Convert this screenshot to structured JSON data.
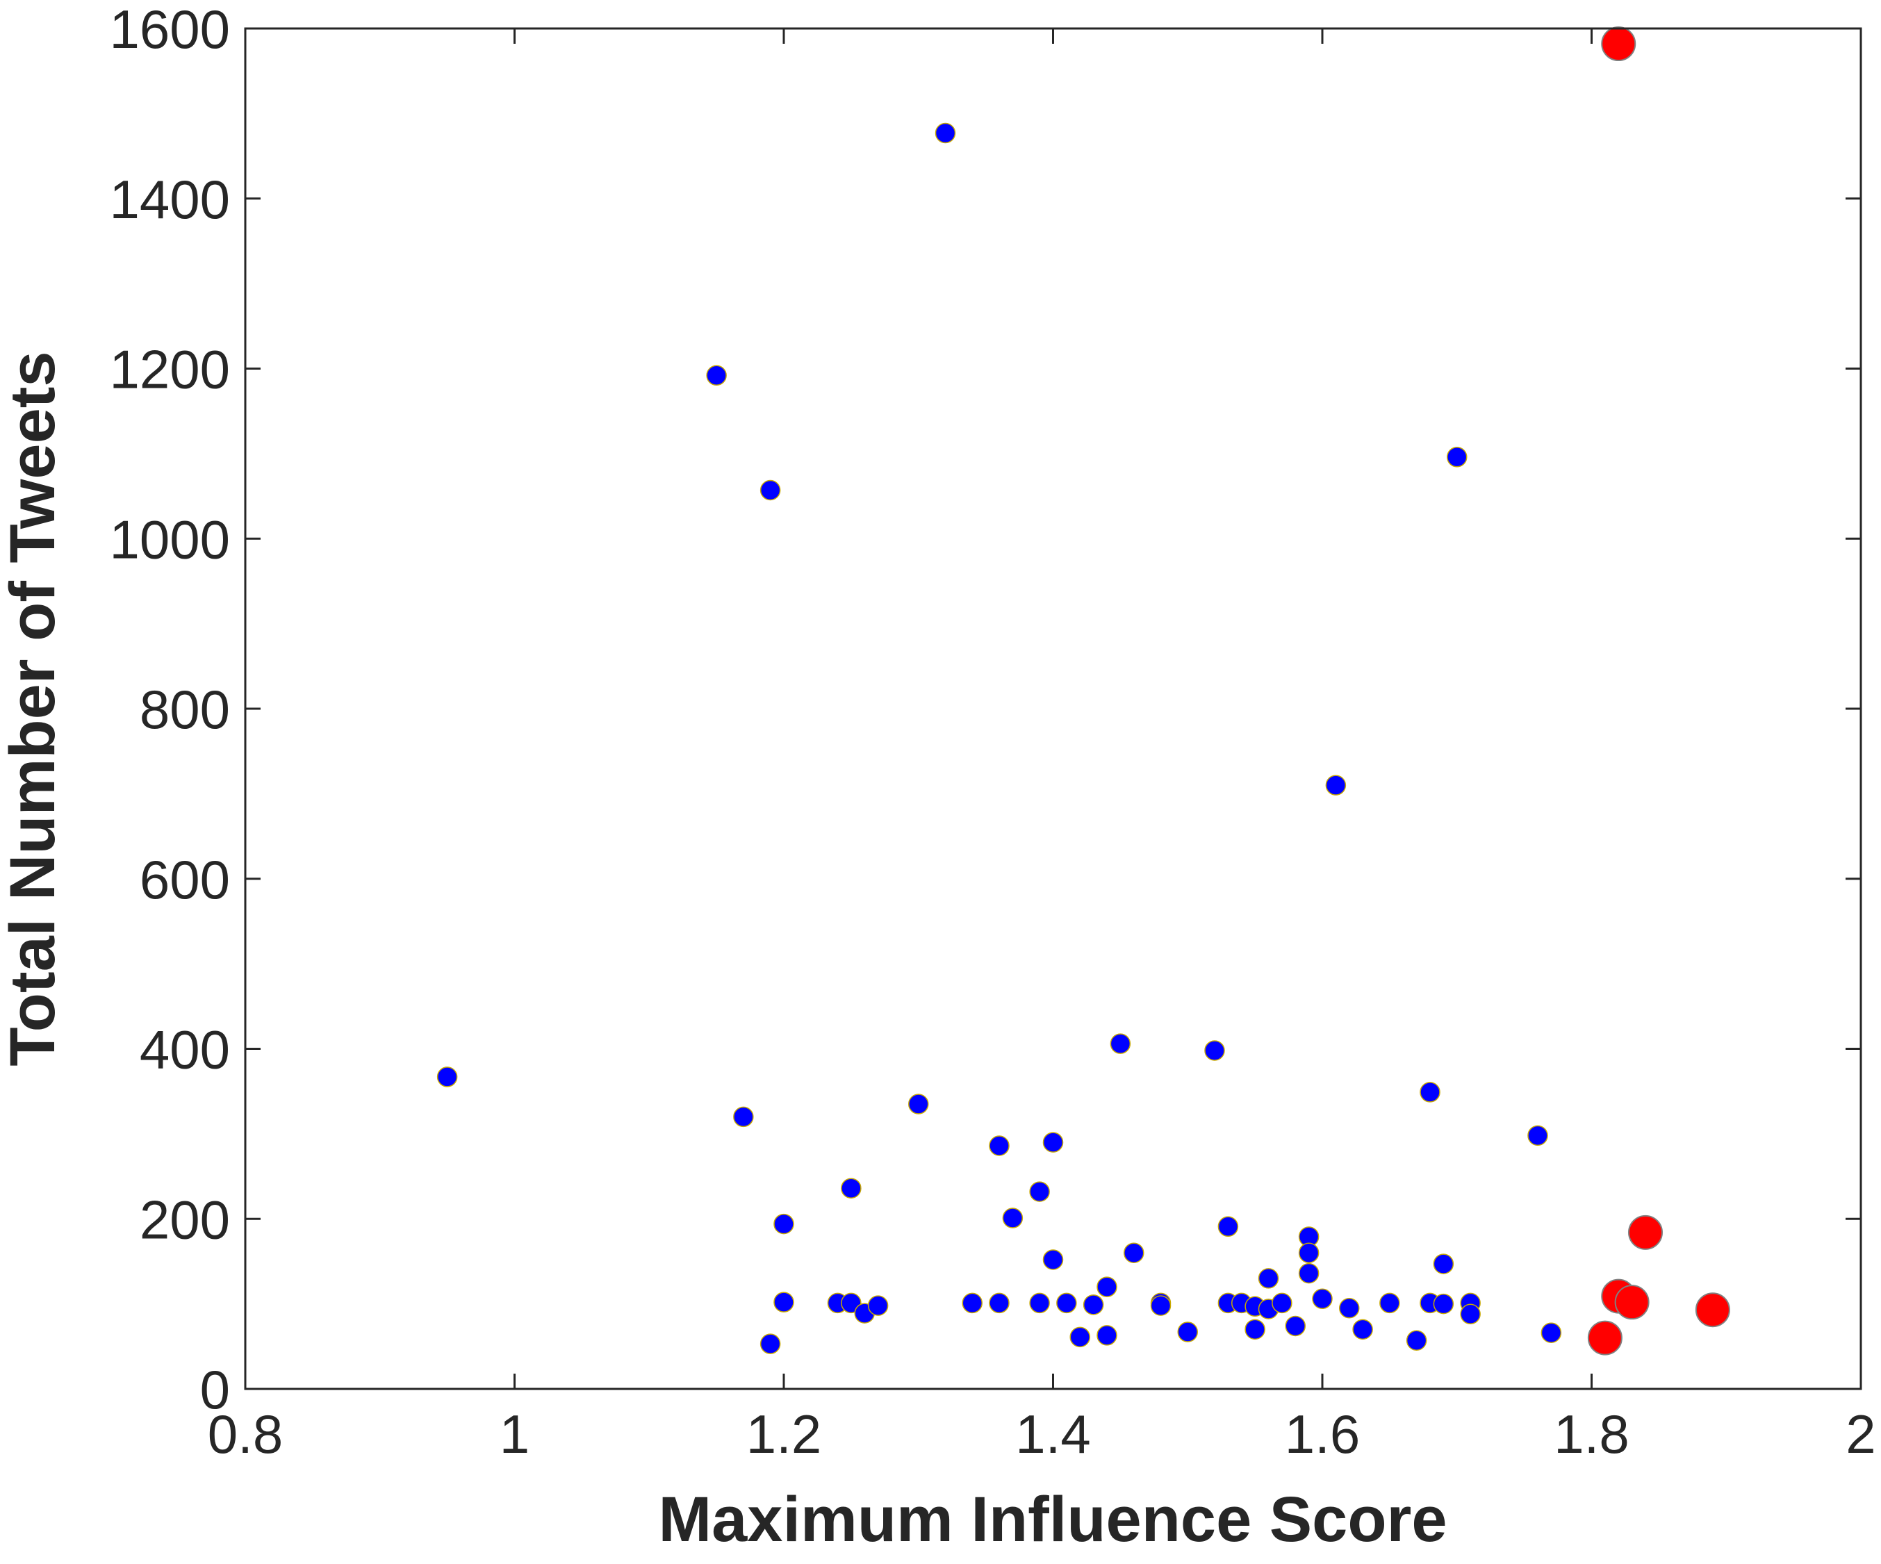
{
  "chart_data": {
    "type": "scatter",
    "xlabel": "Maximum Influence Score",
    "ylabel": "Total Number of Tweets",
    "xlim": [
      0.8,
      2
    ],
    "ylim": [
      0,
      1600
    ],
    "xticks": [
      0.8,
      1,
      1.2,
      1.4,
      1.6,
      1.8,
      2
    ],
    "xtick_labels": [
      "0.8",
      "1",
      "1.2",
      "1.4",
      "1.6",
      "1.8",
      "2"
    ],
    "yticks": [
      0,
      200,
      400,
      600,
      800,
      1000,
      1200,
      1400,
      1600
    ],
    "ytick_labels": [
      "0",
      "200",
      "400",
      "600",
      "800",
      "1000",
      "1200",
      "1400",
      "1600"
    ],
    "grid": false,
    "colors": {
      "series_1": "#0000ff",
      "series_1_edge": "#c8a800",
      "series_2": "#ff0000",
      "series_2_edge": "#808080",
      "axis": "#262626"
    },
    "series": [
      {
        "color": "#0000ff",
        "points": [
          [
            0.95,
            367
          ],
          [
            1.15,
            1192
          ],
          [
            1.17,
            320
          ],
          [
            1.19,
            1057
          ],
          [
            1.19,
            53
          ],
          [
            1.2,
            102
          ],
          [
            1.2,
            194
          ],
          [
            1.24,
            101
          ],
          [
            1.25,
            236
          ],
          [
            1.25,
            101
          ],
          [
            1.26,
            89
          ],
          [
            1.27,
            98
          ],
          [
            1.3,
            335
          ],
          [
            1.32,
            1477
          ],
          [
            1.34,
            101
          ],
          [
            1.36,
            286
          ],
          [
            1.36,
            101
          ],
          [
            1.37,
            201
          ],
          [
            1.39,
            232
          ],
          [
            1.39,
            101
          ],
          [
            1.4,
            290
          ],
          [
            1.4,
            152
          ],
          [
            1.41,
            101
          ],
          [
            1.42,
            61
          ],
          [
            1.43,
            99
          ],
          [
            1.44,
            120
          ],
          [
            1.44,
            63
          ],
          [
            1.45,
            406
          ],
          [
            1.46,
            160
          ],
          [
            1.48,
            101
          ],
          [
            1.48,
            98
          ],
          [
            1.5,
            67
          ],
          [
            1.52,
            398
          ],
          [
            1.53,
            101
          ],
          [
            1.53,
            191
          ],
          [
            1.54,
            101
          ],
          [
            1.55,
            70
          ],
          [
            1.55,
            97
          ],
          [
            1.56,
            130
          ],
          [
            1.56,
            94
          ],
          [
            1.57,
            101
          ],
          [
            1.58,
            74
          ],
          [
            1.59,
            179
          ],
          [
            1.59,
            160
          ],
          [
            1.59,
            136
          ],
          [
            1.6,
            106
          ],
          [
            1.61,
            710
          ],
          [
            1.62,
            95
          ],
          [
            1.63,
            70
          ],
          [
            1.65,
            101
          ],
          [
            1.67,
            57
          ],
          [
            1.68,
            349
          ],
          [
            1.68,
            101
          ],
          [
            1.69,
            147
          ],
          [
            1.69,
            100
          ],
          [
            1.7,
            1096
          ],
          [
            1.71,
            101
          ],
          [
            1.71,
            88
          ],
          [
            1.76,
            298
          ],
          [
            1.77,
            66
          ]
        ]
      },
      {
        "color": "#ff0000",
        "points": [
          [
            1.82,
            1582
          ],
          [
            1.84,
            184
          ],
          [
            1.82,
            109
          ],
          [
            1.83,
            102
          ],
          [
            1.89,
            93
          ],
          [
            1.81,
            60
          ]
        ]
      }
    ]
  }
}
